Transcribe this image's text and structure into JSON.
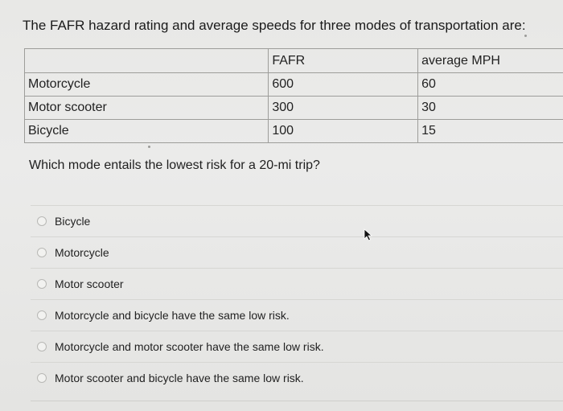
{
  "question": {
    "text": "The FAFR hazard rating and average speeds for three modes of transportation are:"
  },
  "table": {
    "headers": [
      "",
      "FAFR",
      "average MPH"
    ],
    "rows": [
      [
        "Motorcycle",
        "600",
        "60"
      ],
      [
        "Motor scooter",
        "300",
        "30"
      ],
      [
        "Bicycle",
        "100",
        "15"
      ]
    ]
  },
  "prompt": {
    "text": "Which mode entails the lowest risk for a 20-mi trip?"
  },
  "options": [
    {
      "label": "Bicycle"
    },
    {
      "label": "Motorcycle"
    },
    {
      "label": "Motor scooter"
    },
    {
      "label": "Motorcycle and bicycle have the same low risk."
    },
    {
      "label": "Motorcycle and motor scooter have the same low risk."
    },
    {
      "label": "Motor scooter and bicycle have the same low risk."
    }
  ]
}
